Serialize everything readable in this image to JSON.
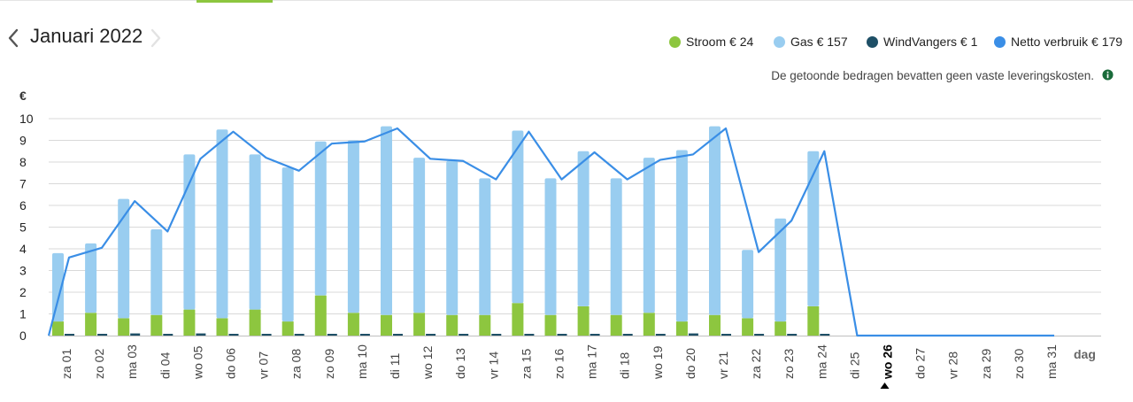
{
  "header": {
    "title": "Januari 2022",
    "prev_icon": "chevron-left-icon",
    "next_icon": "chevron-right-icon"
  },
  "legend": [
    {
      "label": "Stroom",
      "amount": "€ 24",
      "color": "#8dc63f"
    },
    {
      "label": "Gas",
      "amount": "€ 157",
      "color": "#99cdf0"
    },
    {
      "label": "WindVangers",
      "amount": "€ 1",
      "color": "#1e4f66"
    },
    {
      "label": "Netto verbruik",
      "amount": "€ 179",
      "color": "#3a8ee6"
    }
  ],
  "note": "De getoonde bedragen bevatten geen vaste leveringskosten.",
  "info_icon": "info-icon",
  "colors": {
    "stroom": "#8dc63f",
    "gas": "#99cdf0",
    "windvangers": "#1e4f66",
    "netto": "#3a8ee6",
    "grid": "#d9d9d9"
  },
  "chart_data": {
    "type": "bar",
    "stacked": true,
    "ylabel": "€",
    "xlabel": "dag",
    "ylim": [
      0,
      10
    ],
    "yticks": [
      "0",
      "1",
      "2",
      "3",
      "4",
      "5",
      "6",
      "7",
      "8",
      "9",
      "10"
    ],
    "grid": true,
    "legend_position": "top-right",
    "highlighted_category": "wo 26",
    "categories": [
      "za 01",
      "zo 02",
      "ma 03",
      "di 04",
      "wo 05",
      "do 06",
      "vr 07",
      "za 08",
      "zo 09",
      "ma 10",
      "di 11",
      "wo 12",
      "do 13",
      "vr 14",
      "za 15",
      "zo 16",
      "ma 17",
      "di 18",
      "wo 19",
      "do 20",
      "vr 21",
      "za 22",
      "zo 23",
      "ma 24",
      "di 25",
      "wo 26",
      "do 27",
      "vr 28",
      "za 29",
      "zo 30",
      "ma 31"
    ],
    "series": [
      {
        "name": "Stroom",
        "type": "bar",
        "values": [
          0.65,
          1.05,
          0.8,
          0.95,
          1.2,
          0.8,
          1.2,
          0.65,
          1.85,
          1.05,
          0.95,
          1.05,
          0.95,
          0.95,
          1.5,
          0.95,
          1.35,
          0.95,
          1.05,
          0.65,
          0.95,
          0.8,
          0.65,
          1.35,
          0,
          0,
          0,
          0,
          0,
          0,
          0
        ]
      },
      {
        "name": "Gas",
        "type": "bar",
        "values": [
          3.15,
          3.2,
          5.5,
          3.95,
          7.15,
          8.7,
          7.15,
          7.1,
          7.1,
          7.95,
          8.7,
          7.15,
          7.1,
          6.3,
          7.95,
          6.3,
          7.15,
          6.3,
          7.15,
          7.9,
          8.7,
          3.15,
          4.75,
          7.15,
          0,
          0,
          0,
          0,
          0,
          0,
          0
        ]
      },
      {
        "name": "WindVangers",
        "type": "bar",
        "values": [
          0.07,
          0.05,
          0.1,
          0.02,
          0.1,
          0.07,
          0.07,
          0.07,
          0.07,
          0.02,
          0.02,
          0.02,
          0.02,
          0.02,
          0.02,
          0.02,
          0.02,
          0.02,
          0.07,
          0.1,
          0.02,
          0.02,
          0.02,
          0.02,
          0,
          0,
          0,
          0,
          0,
          0,
          0
        ]
      },
      {
        "name": "Netto verbruik",
        "type": "line",
        "values": [
          3.6,
          4.05,
          6.2,
          4.8,
          8.15,
          9.4,
          8.2,
          7.6,
          8.85,
          8.95,
          9.55,
          8.15,
          8.05,
          7.2,
          9.4,
          7.2,
          8.45,
          7.2,
          8.1,
          8.35,
          9.55,
          3.85,
          5.3,
          8.5,
          0,
          0,
          0,
          0,
          0,
          0,
          0
        ]
      }
    ]
  }
}
